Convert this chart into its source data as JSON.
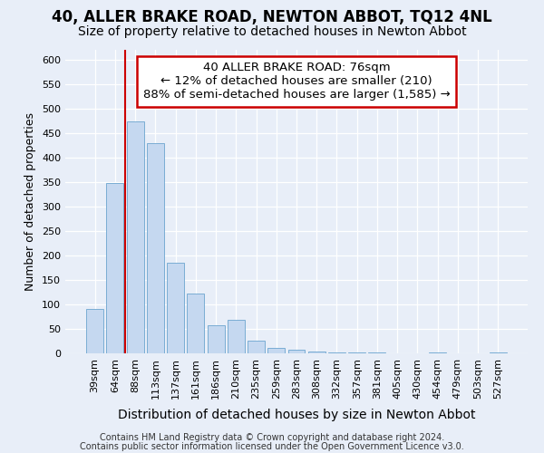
{
  "title": "40, ALLER BRAKE ROAD, NEWTON ABBOT, TQ12 4NL",
  "subtitle": "Size of property relative to detached houses in Newton Abbot",
  "xlabel": "Distribution of detached houses by size in Newton Abbot",
  "ylabel": "Number of detached properties",
  "categories": [
    "39sqm",
    "64sqm",
    "88sqm",
    "113sqm",
    "137sqm",
    "161sqm",
    "186sqm",
    "210sqm",
    "235sqm",
    "259sqm",
    "283sqm",
    "308sqm",
    "332sqm",
    "357sqm",
    "381sqm",
    "405sqm",
    "430sqm",
    "454sqm",
    "479sqm",
    "503sqm",
    "527sqm"
  ],
  "values": [
    90,
    348,
    473,
    430,
    185,
    123,
    57,
    68,
    25,
    12,
    8,
    3,
    2,
    1,
    1,
    0,
    0,
    1,
    0,
    0,
    1
  ],
  "bar_color": "#c5d8f0",
  "bar_edge_color": "#7aadd4",
  "vline_color": "#cc0000",
  "annotation_text": "40 ALLER BRAKE ROAD: 76sqm\n← 12% of detached houses are smaller (210)\n88% of semi-detached houses are larger (1,585) →",
  "annotation_box_color": "#ffffff",
  "annotation_box_edge": "#cc0000",
  "ylim": [
    0,
    620
  ],
  "yticks": [
    0,
    50,
    100,
    150,
    200,
    250,
    300,
    350,
    400,
    450,
    500,
    550,
    600
  ],
  "footer1": "Contains HM Land Registry data © Crown copyright and database right 2024.",
  "footer2": "Contains public sector information licensed under the Open Government Licence v3.0.",
  "background_color": "#e8eef8",
  "plot_bg_color": "#e8eef8",
  "title_fontsize": 12,
  "subtitle_fontsize": 10,
  "annotation_fontsize": 9.5,
  "tick_fontsize": 8,
  "ylabel_fontsize": 9,
  "xlabel_fontsize": 10
}
